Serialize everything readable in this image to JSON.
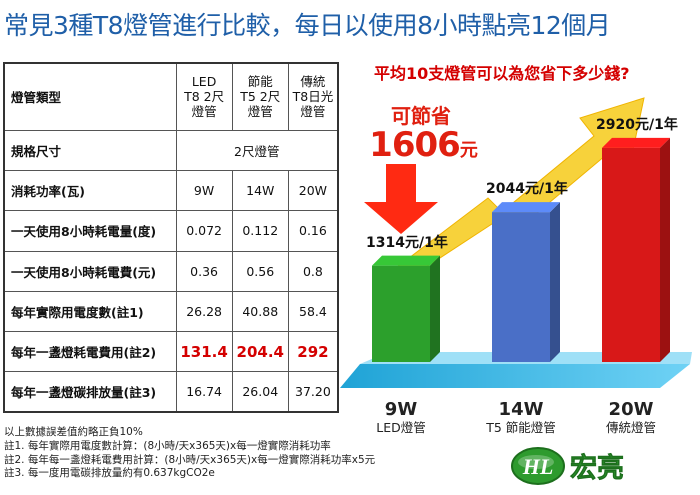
{
  "title": "常見3種T8燈管進行比較，每日以使用8小時點亮12個月",
  "subtitle": "平均10支燈管可以為您省下多少錢?",
  "savings": {
    "label": "可節省",
    "value": "1606",
    "unit": "元"
  },
  "table": {
    "header_label": "燈管類型",
    "columns": [
      "LED\nT8 2尺\n燈管",
      "節能\nT5 2尺\n燈管",
      "傳統\nT8日光\n燈管"
    ],
    "spec": {
      "label": "規格尺寸",
      "value": "2尺燈管"
    },
    "rows": [
      {
        "label": "消耗功率(瓦)",
        "values": [
          "9W",
          "14W",
          "20W"
        ],
        "highlight": false
      },
      {
        "label": "一天使用8小時耗電量(度)",
        "values": [
          "0.072",
          "0.112",
          "0.16"
        ],
        "highlight": false
      },
      {
        "label": "一天使用8小時耗電費(元)",
        "values": [
          "0.36",
          "0.56",
          "0.8"
        ],
        "highlight": false
      },
      {
        "label": "每年實際用電度數(註1)",
        "values": [
          "26.28",
          "40.88",
          "58.4"
        ],
        "highlight": false
      },
      {
        "label": "每年一盞燈耗電費用(註2)",
        "values": [
          "131.4",
          "204.4",
          "292"
        ],
        "highlight": true
      },
      {
        "label": "每年一盞燈碳排放量(註3)",
        "values": [
          "16.74",
          "26.04",
          "37.20"
        ],
        "highlight": false
      }
    ]
  },
  "notes": [
    "以上數據誤差值約略正負10%",
    "註1. 每年實際用電度數計算：(8小時/天x365天)x每一燈實際消耗功率",
    "註2. 每年每一盞燈耗電費用計算：(8小時/天x365天)x每一燈實際消耗功率x5元",
    "註3. 每一度用電碳排放量約有0.637kgCO2e"
  ],
  "chart_data": {
    "type": "bar",
    "categories": [
      "9W LED燈管",
      "14W T5 節能燈管",
      "20W 傳統燈管"
    ],
    "values": [
      1314,
      2044,
      2920
    ],
    "value_labels": [
      "1314元/1年",
      "2044元/1年",
      "2920元/1年"
    ],
    "watts": [
      "9W",
      "14W",
      "20W"
    ],
    "names": [
      "LED燈管",
      "T5 節能燈管",
      "傳統燈管"
    ],
    "colors": [
      "#2ca02c",
      "#4a6fc7",
      "#d81818"
    ],
    "ylim": [
      0,
      3000
    ]
  },
  "logo": {
    "text1": "HL",
    "text2": "宏亮",
    "colors": {
      "primary": "#2e9b2e"
    }
  }
}
